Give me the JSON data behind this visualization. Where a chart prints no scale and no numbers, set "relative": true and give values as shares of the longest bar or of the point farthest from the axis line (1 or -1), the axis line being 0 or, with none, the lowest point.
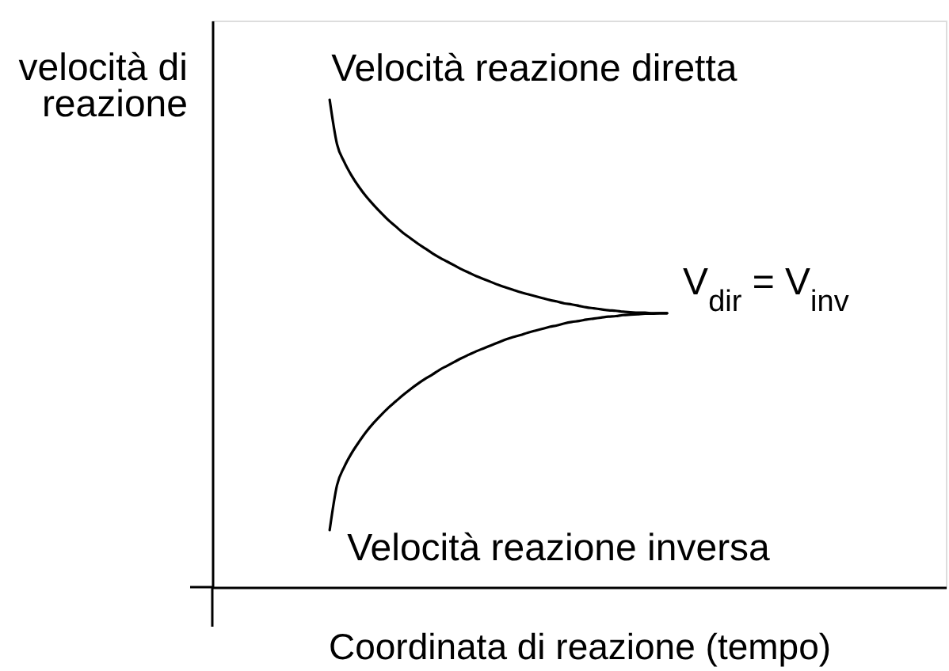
{
  "chart_data": {
    "type": "line",
    "relative": true,
    "xlabel": "Coordinata di reazione (tempo)",
    "ylabel": "velocità di\nreazione",
    "categories": [
      null,
      null,
      null,
      null,
      null,
      null,
      null,
      null,
      null,
      null,
      null,
      null,
      null,
      null,
      null,
      null,
      null,
      null,
      null,
      null,
      null,
      null,
      null,
      null,
      null,
      null,
      null,
      null,
      null,
      null,
      null,
      null,
      null,
      null,
      null,
      null,
      null,
      null,
      null,
      null,
      null,
      null,
      null,
      null,
      null,
      null,
      null,
      null,
      null,
      null,
      null,
      null,
      null,
      null,
      null,
      null,
      null,
      null,
      null,
      null,
      null,
      null,
      null,
      null,
      null,
      null,
      null,
      null,
      null,
      null,
      null,
      null,
      null,
      null,
      null,
      null,
      null,
      null,
      null,
      null,
      null,
      null,
      null,
      null,
      null,
      null,
      null,
      null,
      null,
      null,
      null,
      null,
      null,
      null,
      null,
      null,
      null,
      null,
      null,
      null,
      null
    ],
    "series": [
      {
        "name": "Velocità reazione diretta",
        "color": "#000000",
        "values": [
          null,
          null,
          null,
          null,
          null,
          null,
          null,
          null,
          null,
          null,
          null,
          null,
          null,
          null,
          null,
          null,
          1,
          0.909,
          0.872,
          0.844,
          0.821,
          0.801,
          0.784,
          0.768,
          0.753,
          0.74,
          0.727,
          0.716,
          0.705,
          0.695,
          0.685,
          0.676,
          0.668,
          0.66,
          0.652,
          0.645,
          0.638,
          0.632,
          0.626,
          0.62,
          0.615,
          0.61,
          0.605,
          0.601,
          0.597,
          0.593,
          0.589,
          0.586,
          0.582,
          0.58,
          0.577,
          0.574,
          0.572,
          0.57,
          0.568,
          0.567,
          0.565,
          0.564,
          0.563,
          0.563,
          0.562,
          0.562,
          0.562,
          null,
          null,
          null,
          null,
          null,
          null,
          null,
          null,
          null,
          null,
          null,
          null,
          null,
          null,
          null,
          null,
          null,
          null,
          null,
          null,
          null,
          null,
          null,
          null,
          null,
          null,
          null,
          null,
          null,
          null,
          null,
          null,
          null,
          null,
          null,
          null,
          null,
          null
        ]
      },
      {
        "name": "Velocità reazione inversa",
        "color": "#000000",
        "values": [
          null,
          null,
          null,
          null,
          null,
          null,
          null,
          null,
          null,
          null,
          null,
          null,
          null,
          null,
          null,
          null,
          0.117,
          0.209,
          0.247,
          0.275,
          0.298,
          0.319,
          0.337,
          0.353,
          0.368,
          0.381,
          0.394,
          0.406,
          0.417,
          0.427,
          0.436,
          0.446,
          0.454,
          0.462,
          0.47,
          0.477,
          0.484,
          0.49,
          0.496,
          0.502,
          0.508,
          0.513,
          0.517,
          0.522,
          0.526,
          0.53,
          0.534,
          0.537,
          0.541,
          0.544,
          0.546,
          0.549,
          0.551,
          0.553,
          0.555,
          0.556,
          0.558,
          0.559,
          0.56,
          0.561,
          0.561,
          0.562,
          0.562,
          null,
          null,
          null,
          null,
          null,
          null,
          null,
          null,
          null,
          null,
          null,
          null,
          null,
          null,
          null,
          null,
          null,
          null,
          null,
          null,
          null,
          null,
          null,
          null,
          null,
          null,
          null,
          null,
          null,
          null,
          null,
          null,
          null,
          null,
          null,
          null,
          null,
          null
        ]
      }
    ],
    "annotations": [
      "V$_{dir}$ = V$_{inv}$"
    ]
  }
}
